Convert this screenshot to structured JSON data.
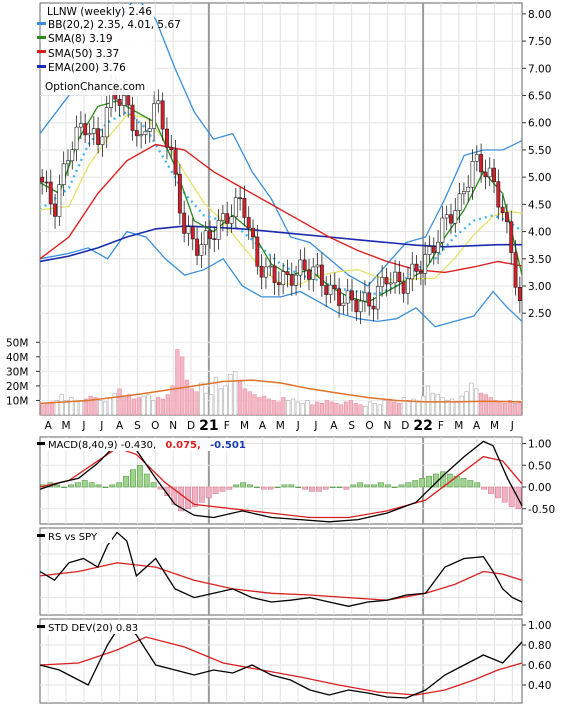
{
  "chart_data": {
    "type": "line",
    "symbol": "LLNW",
    "periodicity": "weekly",
    "last_close": "2.46",
    "title": "LLNW (weekly) 2.46",
    "watermark": "OptionChance.com",
    "legend": {
      "bb": "BB(20,2) 2.35, 4.01, 5.67",
      "sma8": "SMA(8) 3.19",
      "sma50": "SMA(50) 3.37",
      "ema200": "EMA(200) 3.76"
    },
    "price_axis": {
      "ylim": [
        2.1,
        8.2
      ],
      "ticks": [
        "2.50",
        "3.00",
        "3.50",
        "4.00",
        "4.50",
        "5.00",
        "5.50",
        "6.00",
        "6.50",
        "7.00",
        "7.50",
        "8.00"
      ]
    },
    "volume_axis": {
      "ylim": [
        0,
        55
      ],
      "ticks": [
        "10M",
        "20M",
        "30M",
        "40M",
        "50M"
      ]
    },
    "months": [
      "A",
      "M",
      "J",
      "J",
      "A",
      "S",
      "O",
      "N",
      "D",
      "21",
      "F",
      "M",
      "A",
      "M",
      "J",
      "J",
      "A",
      "S",
      "O",
      "N",
      "D",
      "22",
      "F",
      "M",
      "A",
      "M",
      "J"
    ],
    "price_path": [
      [
        0,
        5.0
      ],
      [
        3,
        4.4
      ],
      [
        6,
        5.5
      ],
      [
        9,
        6.0
      ],
      [
        12,
        5.6
      ],
      [
        15,
        6.6
      ],
      [
        18,
        6.3
      ],
      [
        21,
        5.6
      ],
      [
        24,
        6.4
      ],
      [
        27,
        5.5
      ],
      [
        30,
        4.0
      ],
      [
        33,
        3.7
      ],
      [
        36,
        4.0
      ],
      [
        39,
        4.3
      ],
      [
        42,
        4.6
      ],
      [
        45,
        3.4
      ],
      [
        48,
        3.2
      ],
      [
        51,
        3.1
      ],
      [
        54,
        3.3
      ],
      [
        57,
        3.3
      ],
      [
        60,
        2.9
      ],
      [
        63,
        2.75
      ],
      [
        66,
        2.7
      ],
      [
        69,
        2.7
      ],
      [
        72,
        3.2
      ],
      [
        75,
        3.0
      ],
      [
        78,
        3.3
      ],
      [
        81,
        3.6
      ],
      [
        84,
        4.2
      ],
      [
        87,
        4.5
      ],
      [
        90,
        5.3
      ],
      [
        93,
        5.1
      ],
      [
        96,
        4.4
      ],
      [
        98,
        3.5
      ],
      [
        100,
        2.46
      ]
    ],
    "sma8_path": [
      [
        0,
        4.9
      ],
      [
        4,
        4.7
      ],
      [
        8,
        5.7
      ],
      [
        12,
        6.3
      ],
      [
        16,
        6.4
      ],
      [
        20,
        6.2
      ],
      [
        24,
        6.0
      ],
      [
        28,
        5.2
      ],
      [
        32,
        4.2
      ],
      [
        36,
        4.0
      ],
      [
        40,
        4.3
      ],
      [
        44,
        4.0
      ],
      [
        48,
        3.4
      ],
      [
        52,
        3.2
      ],
      [
        56,
        3.3
      ],
      [
        60,
        3.0
      ],
      [
        64,
        2.8
      ],
      [
        68,
        2.7
      ],
      [
        72,
        2.9
      ],
      [
        76,
        3.1
      ],
      [
        80,
        3.3
      ],
      [
        84,
        3.9
      ],
      [
        88,
        4.4
      ],
      [
        92,
        5.1
      ],
      [
        96,
        4.7
      ],
      [
        100,
        3.2
      ]
    ],
    "sma50_path": [
      [
        0,
        3.5
      ],
      [
        6,
        3.9
      ],
      [
        12,
        4.7
      ],
      [
        18,
        5.3
      ],
      [
        24,
        5.6
      ],
      [
        30,
        5.5
      ],
      [
        36,
        5.1
      ],
      [
        42,
        4.8
      ],
      [
        48,
        4.5
      ],
      [
        54,
        4.2
      ],
      [
        60,
        3.9
      ],
      [
        66,
        3.65
      ],
      [
        72,
        3.45
      ],
      [
        78,
        3.3
      ],
      [
        84,
        3.25
      ],
      [
        90,
        3.35
      ],
      [
        95,
        3.45
      ],
      [
        100,
        3.37
      ]
    ],
    "ema200_path": [
      [
        0,
        3.45
      ],
      [
        6,
        3.55
      ],
      [
        12,
        3.7
      ],
      [
        18,
        3.9
      ],
      [
        24,
        4.05
      ],
      [
        30,
        4.1
      ],
      [
        36,
        4.08
      ],
      [
        42,
        4.05
      ],
      [
        48,
        4.0
      ],
      [
        54,
        3.95
      ],
      [
        60,
        3.9
      ],
      [
        66,
        3.85
      ],
      [
        72,
        3.8
      ],
      [
        78,
        3.75
      ],
      [
        84,
        3.72
      ],
      [
        90,
        3.74
      ],
      [
        95,
        3.76
      ],
      [
        100,
        3.76
      ]
    ],
    "bb_upper_path": [
      [
        0,
        5.8
      ],
      [
        6,
        6.5
      ],
      [
        10,
        7.3
      ],
      [
        14,
        8.0
      ],
      [
        18,
        8.1
      ],
      [
        20,
        8.3
      ],
      [
        24,
        7.9
      ],
      [
        28,
        7.0
      ],
      [
        32,
        6.2
      ],
      [
        36,
        5.7
      ],
      [
        40,
        5.8
      ],
      [
        44,
        5.1
      ],
      [
        48,
        4.6
      ],
      [
        52,
        3.9
      ],
      [
        56,
        3.8
      ],
      [
        60,
        3.5
      ],
      [
        64,
        3.2
      ],
      [
        68,
        3.0
      ],
      [
        72,
        3.4
      ],
      [
        76,
        3.8
      ],
      [
        80,
        3.9
      ],
      [
        84,
        4.6
      ],
      [
        88,
        5.4
      ],
      [
        92,
        5.5
      ],
      [
        96,
        5.5
      ],
      [
        100,
        5.67
      ]
    ],
    "bb_mid_path": [
      [
        0,
        4.4
      ],
      [
        6,
        4.8
      ],
      [
        10,
        5.6
      ],
      [
        14,
        6.0
      ],
      [
        18,
        6.2
      ],
      [
        22,
        5.9
      ],
      [
        26,
        5.3
      ],
      [
        30,
        4.7
      ],
      [
        34,
        4.3
      ],
      [
        38,
        4.2
      ],
      [
        42,
        4.0
      ],
      [
        46,
        3.7
      ],
      [
        50,
        3.4
      ],
      [
        54,
        3.2
      ],
      [
        58,
        3.1
      ],
      [
        62,
        2.95
      ],
      [
        66,
        2.9
      ],
      [
        70,
        2.85
      ],
      [
        74,
        3.0
      ],
      [
        78,
        3.3
      ],
      [
        82,
        3.5
      ],
      [
        86,
        3.9
      ],
      [
        90,
        4.2
      ],
      [
        94,
        4.3
      ],
      [
        97,
        4.2
      ],
      [
        100,
        4.01
      ]
    ],
    "bb_lower_path": [
      [
        0,
        3.5
      ],
      [
        6,
        3.6
      ],
      [
        10,
        3.7
      ],
      [
        14,
        3.5
      ],
      [
        18,
        4.0
      ],
      [
        22,
        3.9
      ],
      [
        26,
        3.5
      ],
      [
        30,
        3.2
      ],
      [
        34,
        3.3
      ],
      [
        38,
        3.5
      ],
      [
        42,
        3.0
      ],
      [
        46,
        2.8
      ],
      [
        50,
        2.8
      ],
      [
        54,
        2.9
      ],
      [
        58,
        2.7
      ],
      [
        62,
        2.5
      ],
      [
        66,
        2.4
      ],
      [
        70,
        2.35
      ],
      [
        74,
        2.4
      ],
      [
        78,
        2.6
      ],
      [
        82,
        2.25
      ],
      [
        86,
        2.35
      ],
      [
        90,
        2.45
      ],
      [
        94,
        2.9
      ],
      [
        97,
        2.6
      ],
      [
        100,
        2.35
      ]
    ],
    "volume_values": [
      7,
      8,
      9,
      10,
      14,
      10,
      12,
      9,
      10,
      11,
      13,
      12,
      10,
      9,
      12,
      15,
      18,
      13,
      14,
      11,
      12,
      13,
      14,
      10,
      12,
      11,
      14,
      20,
      45,
      40,
      24,
      18,
      16,
      22,
      15,
      14,
      26,
      18,
      20,
      28,
      30,
      24,
      18,
      16,
      14,
      12,
      13,
      11,
      10,
      9,
      12,
      10,
      11,
      9,
      8,
      10,
      7,
      9,
      8,
      10,
      9,
      8,
      7,
      9,
      10,
      8,
      7,
      6,
      9,
      8,
      7,
      10,
      11,
      9,
      8,
      12,
      10,
      11,
      9,
      13,
      20,
      15,
      14,
      12,
      10,
      11,
      9,
      13,
      16,
      22,
      18,
      15,
      14,
      12,
      10,
      9,
      8,
      10,
      8,
      9
    ],
    "volume_avg_path": [
      [
        0,
        8
      ],
      [
        10,
        10
      ],
      [
        20,
        14
      ],
      [
        30,
        19
      ],
      [
        38,
        23
      ],
      [
        44,
        24
      ],
      [
        50,
        22
      ],
      [
        56,
        18
      ],
      [
        62,
        15
      ],
      [
        68,
        12
      ],
      [
        74,
        10
      ],
      [
        80,
        9
      ],
      [
        86,
        9
      ],
      [
        92,
        9.5
      ],
      [
        100,
        9
      ]
    ],
    "macd": {
      "label": "MACD(8,40,9) -0.430,",
      "value1": "0.075,",
      "value2": "-0.501",
      "ylim": [
        -0.85,
        1.15
      ],
      "ticks": [
        "1.00",
        "0.50",
        "0.00",
        "-0.50"
      ],
      "hist_values": [
        0.05,
        0.1,
        0.05,
        0.0,
        0.05,
        0.1,
        0.15,
        0.1,
        0.05,
        0.0,
        0.05,
        0.1,
        0.25,
        0.4,
        0.5,
        0.3,
        0.1,
        -0.05,
        -0.2,
        -0.4,
        -0.55,
        -0.5,
        -0.45,
        -0.35,
        -0.25,
        -0.15,
        -0.1,
        -0.05,
        0.05,
        0.1,
        0.05,
        0.0,
        -0.05,
        -0.05,
        0.0,
        0.05,
        0.05,
        0.0,
        -0.05,
        -0.1,
        -0.1,
        -0.05,
        0.0,
        0.0,
        -0.05,
        0.05,
        0.1,
        0.05,
        0.05,
        0.1,
        0.05,
        0.0,
        0.05,
        0.1,
        0.15,
        0.2,
        0.25,
        0.3,
        0.35,
        0.3,
        0.25,
        0.2,
        0.15,
        0.1,
        -0.05,
        -0.15,
        -0.25,
        -0.35,
        -0.45,
        -0.5
      ],
      "macd_path": [
        [
          0,
          -0.05
        ],
        [
          4,
          0.1
        ],
        [
          8,
          0.2
        ],
        [
          12,
          0.55
        ],
        [
          16,
          1.0
        ],
        [
          18,
          1.05
        ],
        [
          20,
          0.85
        ],
        [
          24,
          0.2
        ],
        [
          28,
          -0.4
        ],
        [
          32,
          -0.65
        ],
        [
          36,
          -0.7
        ],
        [
          42,
          -0.55
        ],
        [
          48,
          -0.7
        ],
        [
          54,
          -0.75
        ],
        [
          60,
          -0.8
        ],
        [
          66,
          -0.75
        ],
        [
          72,
          -0.6
        ],
        [
          78,
          -0.35
        ],
        [
          84,
          0.3
        ],
        [
          88,
          0.7
        ],
        [
          92,
          1.05
        ],
        [
          94,
          0.95
        ],
        [
          97,
          0.2
        ],
        [
          100,
          -0.43
        ]
      ],
      "signal_path": [
        [
          0,
          0.0
        ],
        [
          6,
          0.15
        ],
        [
          12,
          0.6
        ],
        [
          16,
          0.9
        ],
        [
          20,
          0.75
        ],
        [
          26,
          0.1
        ],
        [
          32,
          -0.4
        ],
        [
          40,
          -0.5
        ],
        [
          48,
          -0.6
        ],
        [
          56,
          -0.7
        ],
        [
          64,
          -0.7
        ],
        [
          72,
          -0.55
        ],
        [
          80,
          -0.3
        ],
        [
          86,
          0.2
        ],
        [
          92,
          0.7
        ],
        [
          96,
          0.6
        ],
        [
          100,
          0.075
        ]
      ]
    },
    "rs": {
      "label": "RS vs SPY",
      "price_path": [
        [
          0,
          0.55
        ],
        [
          3,
          0.45
        ],
        [
          6,
          0.65
        ],
        [
          9,
          0.7
        ],
        [
          12,
          0.6
        ],
        [
          14,
          0.85
        ],
        [
          16,
          1.0
        ],
        [
          18,
          0.9
        ],
        [
          20,
          0.5
        ],
        [
          24,
          0.7
        ],
        [
          28,
          0.35
        ],
        [
          32,
          0.25
        ],
        [
          36,
          0.3
        ],
        [
          40,
          0.35
        ],
        [
          44,
          0.25
        ],
        [
          48,
          0.2
        ],
        [
          52,
          0.22
        ],
        [
          56,
          0.25
        ],
        [
          60,
          0.2
        ],
        [
          64,
          0.15
        ],
        [
          68,
          0.2
        ],
        [
          72,
          0.22
        ],
        [
          76,
          0.28
        ],
        [
          80,
          0.3
        ],
        [
          84,
          0.6
        ],
        [
          88,
          0.7
        ],
        [
          92,
          0.72
        ],
        [
          94,
          0.55
        ],
        [
          96,
          0.35
        ],
        [
          98,
          0.25
        ],
        [
          100,
          0.2
        ]
      ],
      "avg_path": [
        [
          0,
          0.5
        ],
        [
          8,
          0.55
        ],
        [
          16,
          0.65
        ],
        [
          24,
          0.6
        ],
        [
          32,
          0.45
        ],
        [
          40,
          0.35
        ],
        [
          48,
          0.3
        ],
        [
          56,
          0.28
        ],
        [
          64,
          0.25
        ],
        [
          72,
          0.22
        ],
        [
          80,
          0.3
        ],
        [
          86,
          0.4
        ],
        [
          92,
          0.55
        ],
        [
          96,
          0.52
        ],
        [
          100,
          0.45
        ]
      ]
    },
    "stddev": {
      "label": "STD DEV(20) 0.83",
      "ylim": [
        0.22,
        1.06
      ],
      "ticks": [
        "1.00",
        "0.80",
        "0.60",
        "0.40"
      ],
      "price_path": [
        [
          0,
          0.6
        ],
        [
          4,
          0.55
        ],
        [
          8,
          0.45
        ],
        [
          10,
          0.4
        ],
        [
          12,
          0.6
        ],
        [
          14,
          0.8
        ],
        [
          16,
          0.95
        ],
        [
          18,
          1.0
        ],
        [
          20,
          0.9
        ],
        [
          24,
          0.6
        ],
        [
          28,
          0.55
        ],
        [
          32,
          0.5
        ],
        [
          36,
          0.55
        ],
        [
          40,
          0.52
        ],
        [
          44,
          0.6
        ],
        [
          48,
          0.5
        ],
        [
          52,
          0.45
        ],
        [
          56,
          0.35
        ],
        [
          60,
          0.3
        ],
        [
          64,
          0.35
        ],
        [
          68,
          0.32
        ],
        [
          72,
          0.28
        ],
        [
          76,
          0.27
        ],
        [
          80,
          0.35
        ],
        [
          84,
          0.5
        ],
        [
          88,
          0.6
        ],
        [
          92,
          0.7
        ],
        [
          96,
          0.62
        ],
        [
          100,
          0.83
        ]
      ],
      "avg_path": [
        [
          0,
          0.6
        ],
        [
          8,
          0.62
        ],
        [
          16,
          0.75
        ],
        [
          22,
          0.88
        ],
        [
          30,
          0.78
        ],
        [
          38,
          0.62
        ],
        [
          46,
          0.55
        ],
        [
          54,
          0.48
        ],
        [
          62,
          0.4
        ],
        [
          70,
          0.33
        ],
        [
          78,
          0.3
        ],
        [
          84,
          0.35
        ],
        [
          90,
          0.45
        ],
        [
          95,
          0.55
        ],
        [
          100,
          0.62
        ]
      ]
    }
  }
}
